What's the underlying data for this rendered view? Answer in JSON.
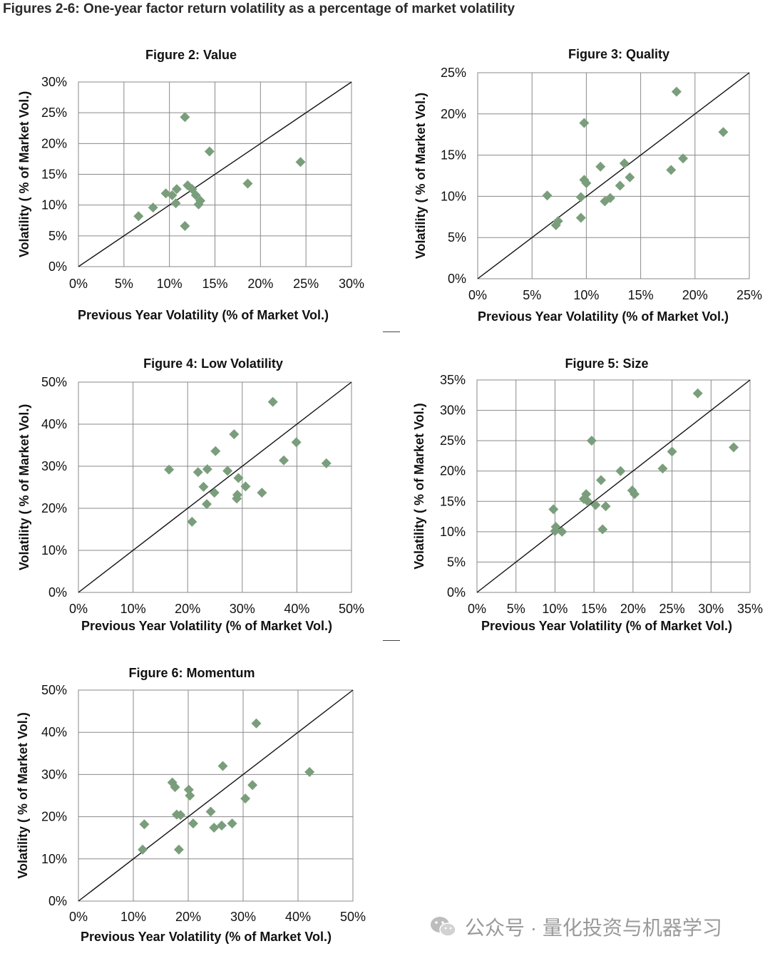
{
  "page": {
    "title": "Figures 2-6: One-year factor return volatility as a percentage of market volatility",
    "watermark": "公众号 · 量化投资与机器学习",
    "marker_color": "#7a9e7b"
  },
  "chart_data": [
    {
      "id": "value",
      "type": "scatter",
      "title": "Figure 2: Value",
      "xlabel": "Previous Year Volatility (% of Market Vol.)",
      "ylabel": "Volatility ( % of Market Vol.)",
      "xlim": [
        0,
        30
      ],
      "ylim": [
        0,
        30
      ],
      "xticks": [
        0,
        5,
        10,
        15,
        20,
        25,
        30
      ],
      "yticks": [
        0,
        5,
        10,
        15,
        20,
        25,
        30
      ],
      "grid": true,
      "diagonal": true,
      "points": [
        [
          6.6,
          8.2
        ],
        [
          8.2,
          9.6
        ],
        [
          9.6,
          11.9
        ],
        [
          10.3,
          11.6
        ],
        [
          10.8,
          12.6
        ],
        [
          10.7,
          10.3
        ],
        [
          11.7,
          24.3
        ],
        [
          11.7,
          6.6
        ],
        [
          12.0,
          13.2
        ],
        [
          12.5,
          12.6
        ],
        [
          12.9,
          11.6
        ],
        [
          13.2,
          10.1
        ],
        [
          13.4,
          10.7
        ],
        [
          14.4,
          18.7
        ],
        [
          18.6,
          13.5
        ],
        [
          24.4,
          17.0
        ]
      ]
    },
    {
      "id": "quality",
      "type": "scatter",
      "title": "Figure 3: Quality",
      "xlabel": "Previous Year Volatility (% of Market Vol.)",
      "ylabel": "Volatility ( % of Market Vol.)",
      "xlim": [
        0,
        25
      ],
      "ylim": [
        0,
        25
      ],
      "xticks": [
        0,
        5,
        10,
        15,
        20,
        25
      ],
      "yticks": [
        0,
        5,
        10,
        15,
        20,
        25
      ],
      "grid": true,
      "diagonal": true,
      "points": [
        [
          6.4,
          10.1
        ],
        [
          7.2,
          6.5
        ],
        [
          7.4,
          7.0
        ],
        [
          9.5,
          9.9
        ],
        [
          9.5,
          7.4
        ],
        [
          9.8,
          12.0
        ],
        [
          10.0,
          11.6
        ],
        [
          9.8,
          18.9
        ],
        [
          11.3,
          13.6
        ],
        [
          11.7,
          9.4
        ],
        [
          12.2,
          9.8
        ],
        [
          13.1,
          11.3
        ],
        [
          13.5,
          14.0
        ],
        [
          14.0,
          12.3
        ],
        [
          17.8,
          13.2
        ],
        [
          18.3,
          22.7
        ],
        [
          18.9,
          14.6
        ],
        [
          22.6,
          17.8
        ]
      ]
    },
    {
      "id": "low-volatility",
      "type": "scatter",
      "title": "Figure 4: Low Volatility",
      "xlabel": "Previous Year Volatility (% of Market Vol.)",
      "ylabel": "Volatility ( % of Market Vol.)",
      "xlim": [
        0,
        50
      ],
      "ylim": [
        0,
        50
      ],
      "xticks": [
        0,
        10,
        20,
        30,
        40,
        50
      ],
      "yticks": [
        0,
        10,
        20,
        30,
        40,
        50
      ],
      "grid": true,
      "diagonal": true,
      "points": [
        [
          16.6,
          29.2
        ],
        [
          20.8,
          16.8
        ],
        [
          21.9,
          28.6
        ],
        [
          22.9,
          25.1
        ],
        [
          23.5,
          21.0
        ],
        [
          23.6,
          29.3
        ],
        [
          24.9,
          23.7
        ],
        [
          25.1,
          33.6
        ],
        [
          27.3,
          28.9
        ],
        [
          28.5,
          37.6
        ],
        [
          29.0,
          22.3
        ],
        [
          29.1,
          23.2
        ],
        [
          29.3,
          27.2
        ],
        [
          30.6,
          25.2
        ],
        [
          33.6,
          23.7
        ],
        [
          35.6,
          45.3
        ],
        [
          37.6,
          31.4
        ],
        [
          39.9,
          35.7
        ],
        [
          45.4,
          30.7
        ]
      ]
    },
    {
      "id": "size",
      "type": "scatter",
      "title": "Figure 5: Size",
      "xlabel": "Previous Year Volatility (% of Market Vol.)",
      "ylabel": "Volatility ( % of Market Vol.)",
      "xlim": [
        0,
        35
      ],
      "ylim": [
        0,
        35
      ],
      "xticks": [
        0,
        5,
        10,
        15,
        20,
        25,
        30,
        35
      ],
      "yticks": [
        0,
        5,
        10,
        15,
        20,
        25,
        30,
        35
      ],
      "grid": true,
      "diagonal": true,
      "points": [
        [
          9.8,
          13.7
        ],
        [
          10.0,
          10.1
        ],
        [
          10.1,
          10.8
        ],
        [
          10.9,
          10.0
        ],
        [
          13.7,
          15.4
        ],
        [
          14.0,
          16.2
        ],
        [
          14.2,
          15.0
        ],
        [
          14.7,
          25.0
        ],
        [
          15.2,
          14.4
        ],
        [
          15.9,
          18.5
        ],
        [
          16.1,
          10.4
        ],
        [
          16.5,
          14.2
        ],
        [
          18.4,
          20.0
        ],
        [
          19.9,
          16.8
        ],
        [
          20.2,
          16.2
        ],
        [
          23.8,
          20.4
        ],
        [
          25.0,
          23.2
        ],
        [
          28.3,
          32.8
        ],
        [
          32.9,
          23.9
        ]
      ]
    },
    {
      "id": "momentum",
      "type": "scatter",
      "title": "Figure 6: Momentum",
      "xlabel": "Previous Year Volatility (% of Market Vol.)",
      "ylabel": "Volatility ( % of Market Vol.)",
      "xlim": [
        0,
        50
      ],
      "ylim": [
        0,
        50
      ],
      "xticks": [
        0,
        10,
        20,
        30,
        40,
        50
      ],
      "yticks": [
        0,
        10,
        20,
        30,
        40,
        50
      ],
      "grid": true,
      "diagonal": true,
      "points": [
        [
          11.7,
          12.2
        ],
        [
          12.0,
          18.2
        ],
        [
          17.1,
          28.1
        ],
        [
          17.6,
          27.0
        ],
        [
          17.9,
          20.5
        ],
        [
          18.3,
          12.2
        ],
        [
          18.6,
          20.4
        ],
        [
          20.1,
          26.4
        ],
        [
          20.3,
          25.0
        ],
        [
          20.9,
          18.4
        ],
        [
          24.1,
          21.2
        ],
        [
          24.7,
          17.4
        ],
        [
          26.1,
          17.9
        ],
        [
          26.3,
          32.0
        ],
        [
          28.0,
          18.4
        ],
        [
          30.4,
          24.3
        ],
        [
          31.7,
          27.5
        ],
        [
          32.4,
          42.1
        ],
        [
          42.1,
          30.6
        ]
      ]
    }
  ]
}
